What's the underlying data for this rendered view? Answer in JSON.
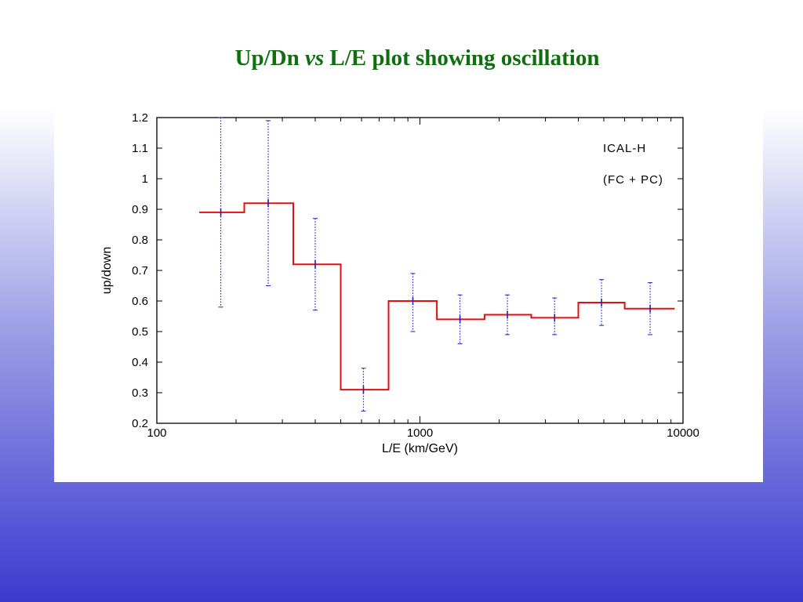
{
  "slide": {
    "title_part1": "Up/Dn ",
    "title_vs": "vs",
    "title_part2": " L/E plot showing oscillation"
  },
  "colors": {
    "title": "#0f6f0f",
    "histogram": "#e01010",
    "errorbar": "#2020d0",
    "background_top": "#ffffff",
    "background_bottom": "#3a3ad0"
  },
  "chart_data": {
    "type": "line",
    "title": "",
    "xlabel": "L/E (km/GeV)",
    "ylabel": "up/down",
    "xscale": "log",
    "xlim": [
      100,
      10000
    ],
    "ylim": [
      0.2,
      1.2
    ],
    "xticks": [
      "100",
      "1000",
      "10000"
    ],
    "yticks": [
      "0.2",
      "0.3",
      "0.4",
      "0.5",
      "0.6",
      "0.7",
      "0.8",
      "0.9",
      "1",
      "1.1",
      "1.2"
    ],
    "legend_lines": [
      "ICAL-H",
      "(FC + PC)"
    ],
    "legend_position": "top-right",
    "grid": false,
    "bins": [
      {
        "x_low": 145,
        "x_high": 215,
        "x_center": 175,
        "y": 0.89,
        "y_err_low": 0.58,
        "y_err_high": 1.2
      },
      {
        "x_low": 215,
        "x_high": 330,
        "x_center": 265,
        "y": 0.92,
        "y_err_low": 0.65,
        "y_err_high": 1.19
      },
      {
        "x_low": 330,
        "x_high": 500,
        "x_center": 400,
        "y": 0.72,
        "y_err_low": 0.57,
        "y_err_high": 0.87
      },
      {
        "x_low": 500,
        "x_high": 760,
        "x_center": 610,
        "y": 0.31,
        "y_err_low": 0.24,
        "y_err_high": 0.38
      },
      {
        "x_low": 760,
        "x_high": 1160,
        "x_center": 940,
        "y": 0.6,
        "y_err_low": 0.5,
        "y_err_high": 0.69
      },
      {
        "x_low": 1160,
        "x_high": 1760,
        "x_center": 1420,
        "y": 0.54,
        "y_err_low": 0.46,
        "y_err_high": 0.62
      },
      {
        "x_low": 1760,
        "x_high": 2650,
        "x_center": 2150,
        "y": 0.555,
        "y_err_low": 0.49,
        "y_err_high": 0.62
      },
      {
        "x_low": 2650,
        "x_high": 4000,
        "x_center": 3250,
        "y": 0.545,
        "y_err_low": 0.49,
        "y_err_high": 0.61
      },
      {
        "x_low": 4000,
        "x_high": 6000,
        "x_center": 4900,
        "y": 0.595,
        "y_err_low": 0.52,
        "y_err_high": 0.67
      },
      {
        "x_low": 6000,
        "x_high": 9300,
        "x_center": 7500,
        "y": 0.575,
        "y_err_low": 0.49,
        "y_err_high": 0.66
      }
    ]
  }
}
